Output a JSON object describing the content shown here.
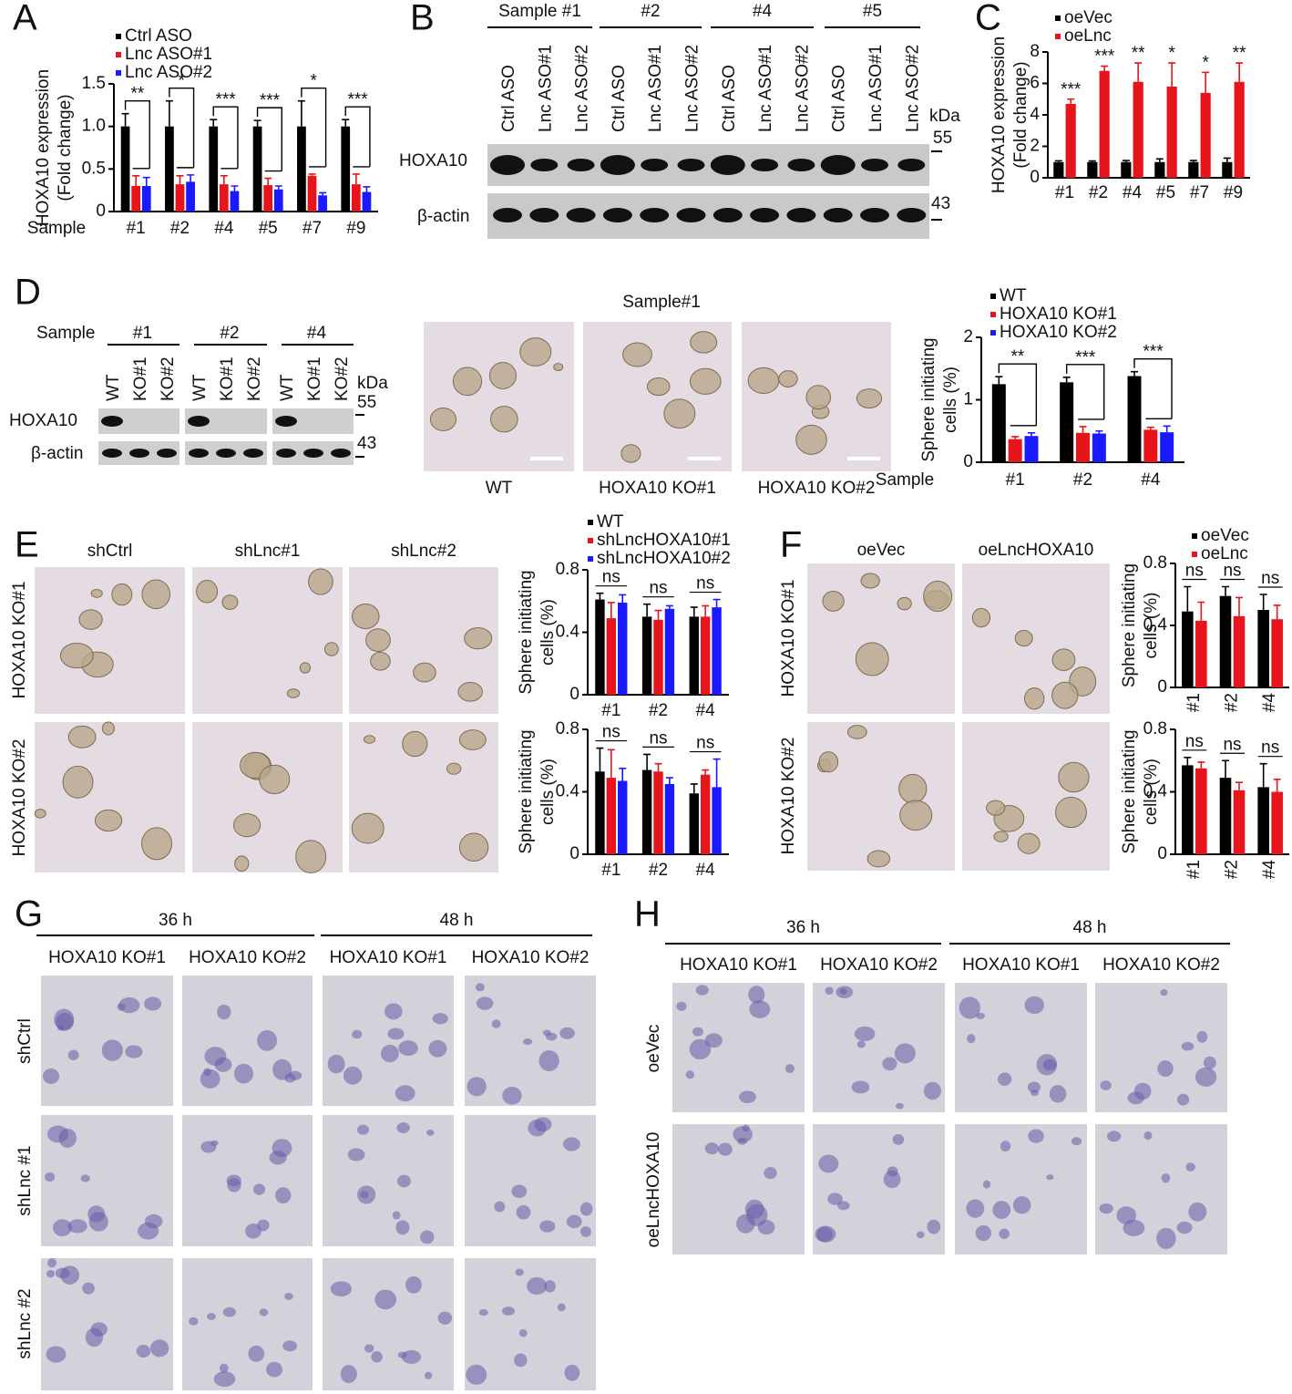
{
  "panel_labels": [
    "A",
    "B",
    "C",
    "D",
    "E",
    "F",
    "G",
    "H"
  ],
  "chart_data": [
    {
      "type": "bar",
      "categories": [
        "#1",
        "#2",
        "#4",
        "#5",
        "#7",
        "#9"
      ],
      "xlabel": "Sample",
      "ylabel": [
        "HOXA10 expression",
        "(Fold change)"
      ],
      "ylim": [
        0,
        1.5
      ],
      "yticks": [
        0,
        0.5,
        {
          "value": 1,
          "label": "1.0"
        },
        1.5
      ],
      "series": [
        {
          "name": "Ctrl ASO",
          "color": "#000000",
          "values": [
            1,
            1,
            1,
            1,
            1,
            1
          ],
          "errors": [
            0.15,
            0.3,
            0.08,
            0.07,
            0.3,
            0.08
          ]
        },
        {
          "name": "Lnc ASO#1",
          "color": "#e8141b",
          "values": [
            0.3,
            0.32,
            0.32,
            0.31,
            0.42,
            0.32
          ],
          "errors": [
            0.12,
            0.1,
            0.1,
            0.08,
            0.02,
            0.12
          ]
        },
        {
          "name": "Lnc ASO#2",
          "color": "#1a1aff",
          "values": [
            0.3,
            0.35,
            0.24,
            0.26,
            0.19,
            0.23
          ],
          "errors": [
            0.1,
            0.08,
            0.06,
            0.04,
            0.03,
            0.06
          ]
        }
      ],
      "significance": [
        "**",
        "*",
        "***",
        "***",
        "*",
        "***"
      ]
    },
    {
      "type": "bar",
      "categories": [
        "#1",
        "#2",
        "#4",
        "#5",
        "#7",
        "#9"
      ],
      "ylabel": [
        "HOXA10 expression",
        "(Fold change)"
      ],
      "ylim": [
        0,
        8
      ],
      "yticks": [
        0,
        2,
        4,
        6,
        8
      ],
      "series": [
        {
          "name": "oeVec",
          "color": "#000000",
          "values": [
            1,
            1,
            1,
            1,
            1,
            1
          ],
          "errors": [
            0.08,
            0.07,
            0.1,
            0.2,
            0.1,
            0.25
          ]
        },
        {
          "name": "oeLnc",
          "color": "#e8141b",
          "values": [
            4.7,
            6.8,
            6.1,
            5.8,
            5.4,
            6.1
          ],
          "errors": [
            0.3,
            0.3,
            1.2,
            1.5,
            1.3,
            1.2
          ]
        }
      ],
      "significance": [
        "***",
        "***",
        "**",
        "*",
        "*",
        "**"
      ]
    },
    {
      "type": "bar",
      "categories": [
        "#1",
        "#2",
        "#4"
      ],
      "xlabel": "Sample",
      "ylabel": [
        "Sphere initiating",
        "cells (%)"
      ],
      "ylim": [
        0,
        2
      ],
      "yticks": [
        0,
        1,
        2
      ],
      "series": [
        {
          "name": "WT",
          "color": "#000000",
          "values": [
            1.25,
            1.28,
            1.38
          ],
          "errors": [
            0.12,
            0.08,
            0.07
          ]
        },
        {
          "name": "HOXA10 KO#1",
          "color": "#e8141b",
          "values": [
            0.37,
            0.47,
            0.52
          ],
          "errors": [
            0.04,
            0.1,
            0.04
          ]
        },
        {
          "name": "HOXA10 KO#2",
          "color": "#1a1aff",
          "values": [
            0.42,
            0.46,
            0.48
          ],
          "errors": [
            0.05,
            0.04,
            0.1
          ]
        }
      ],
      "significance": [
        "**",
        "***",
        "***"
      ]
    },
    {
      "type": "bar",
      "categories": [
        "#1",
        "#2",
        "#4"
      ],
      "ylabel": [
        "Sphere initiating",
        "cells (%)"
      ],
      "ylim": [
        0,
        0.8
      ],
      "yticks": [
        0,
        0.4,
        0.8
      ],
      "series": [
        {
          "name": "WT",
          "color": "#000000",
          "values": [
            0.61,
            0.5,
            0.5
          ],
          "errors": [
            0.04,
            0.08,
            0.06
          ]
        },
        {
          "name": "shLncHOXA10#1",
          "color": "#e8141b",
          "values": [
            0.49,
            0.48,
            0.5
          ],
          "errors": [
            0.1,
            0.06,
            0.07
          ]
        },
        {
          "name": "shLncHOXA10#2",
          "color": "#1a1aff",
          "values": [
            0.59,
            0.55,
            0.56
          ],
          "errors": [
            0.05,
            0.02,
            0.05
          ]
        }
      ],
      "significance": [
        "ns",
        "ns",
        "ns"
      ]
    },
    {
      "type": "bar",
      "categories": [
        "#1",
        "#2",
        "#4"
      ],
      "ylabel": [
        "Sphere initiating",
        "cells (%)"
      ],
      "ylim": [
        0,
        0.8
      ],
      "yticks": [
        0,
        0.4,
        0.8
      ],
      "series": [
        {
          "color": "#000000",
          "values": [
            0.53,
            0.54,
            0.39
          ],
          "errors": [
            0.15,
            0.1,
            0.06
          ]
        },
        {
          "color": "#e8141b",
          "values": [
            0.49,
            0.53,
            0.51
          ],
          "errors": [
            0.18,
            0.05,
            0.03
          ]
        },
        {
          "color": "#1a1aff",
          "values": [
            0.47,
            0.45,
            0.43
          ],
          "errors": [
            0.08,
            0.04,
            0.18
          ]
        }
      ],
      "significance": [
        "ns",
        "ns",
        "ns"
      ]
    },
    {
      "type": "bar",
      "categories": [
        "#1",
        "#2",
        "#4"
      ],
      "ylabel": [
        "Sphere initiating",
        "cells (%)"
      ],
      "ylim": [
        0,
        0.8
      ],
      "yticks": [
        0,
        0.4,
        0.8
      ],
      "series": [
        {
          "name": "oeVec",
          "color": "#000000",
          "values": [
            0.49,
            0.59,
            0.5
          ],
          "errors": [
            0.16,
            0.06,
            0.1
          ]
        },
        {
          "name": "oeLnc",
          "color": "#e8141b",
          "values": [
            0.43,
            0.46,
            0.44
          ],
          "errors": [
            0.12,
            0.12,
            0.09
          ]
        }
      ],
      "significance": [
        "ns",
        "ns",
        "ns"
      ]
    },
    {
      "type": "bar",
      "categories": [
        "#1",
        "#2",
        "#4"
      ],
      "ylabel": [
        "Sphere initiating",
        "cells (%)"
      ],
      "ylim": [
        0,
        0.8
      ],
      "yticks": [
        0,
        0.4,
        0.8
      ],
      "series": [
        {
          "color": "#000000",
          "values": [
            0.57,
            0.49,
            0.43
          ],
          "errors": [
            0.05,
            0.11,
            0.15
          ]
        },
        {
          "color": "#e8141b",
          "values": [
            0.55,
            0.41,
            0.4
          ],
          "errors": [
            0.04,
            0.05,
            0.08
          ]
        }
      ],
      "significance": [
        "ns",
        "ns",
        "ns"
      ]
    }
  ],
  "blot_b": {
    "samples": [
      "Sample #1",
      "#2",
      "#4",
      "#5"
    ],
    "lanes": [
      "Ctrl ASO",
      "Lnc ASO#1",
      "Lnc ASO#2"
    ],
    "bands": [
      "HOXA10",
      "β-actin"
    ],
    "kda": "kDa",
    "markers": [
      "55",
      "43"
    ]
  },
  "blot_d": {
    "sample_label": "Sample",
    "samples": [
      "#1",
      "#2",
      "#4"
    ],
    "lanes": [
      "WT",
      "KO#1",
      "KO#2"
    ],
    "bands": [
      "HOXA10",
      "β-actin"
    ],
    "kda": "kDa",
    "markers": [
      "55",
      "43"
    ]
  },
  "images_d": {
    "title": "Sample#1",
    "labels": [
      "WT",
      "HOXA10 KO#1",
      "HOXA10 KO#2"
    ]
  },
  "images_e": {
    "columns": [
      "shCtrl",
      "shLnc#1",
      "shLnc#2"
    ],
    "rows": [
      "HOXA10 KO#1",
      "HOXA10 KO#2"
    ]
  },
  "images_f": {
    "columns": [
      "oeVec",
      "oeLncHOXA10"
    ],
    "rows": [
      "HOXA10 KO#1",
      "HOXA10 KO#2"
    ]
  },
  "images_g": {
    "times": [
      "36 h",
      "48 h"
    ],
    "columns": [
      "HOXA10 KO#1",
      "HOXA10 KO#2",
      "HOXA10 KO#1",
      "HOXA10 KO#2"
    ],
    "rows": [
      "shCtrl",
      "shLnc #1",
      "shLnc #2"
    ]
  },
  "images_h": {
    "times": [
      "36 h",
      "48 h"
    ],
    "columns": [
      "HOXA10 KO#1",
      "HOXA10 KO#2",
      "HOXA10 KO#1",
      "HOXA10 KO#2"
    ],
    "rows": [
      "oeVec",
      "oeLncHOXA10"
    ]
  }
}
